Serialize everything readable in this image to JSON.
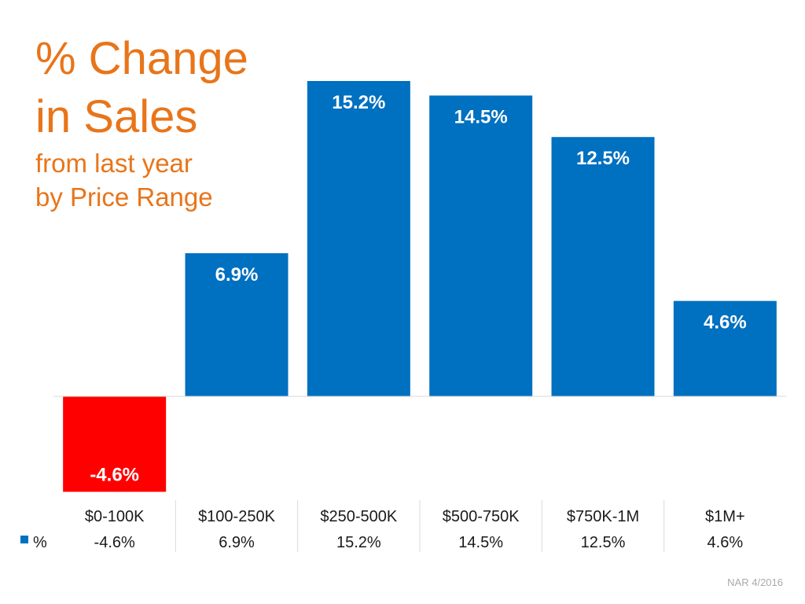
{
  "title": {
    "line1": "% Change",
    "line2": "in Sales",
    "sub1": "from last year",
    "sub2": "by Price Range"
  },
  "chart_data": {
    "type": "bar",
    "categories": [
      "$0-100K",
      "$100-250K",
      "$250-500K",
      "$500-750K",
      "$750K-1M",
      "$1M+"
    ],
    "series": [
      {
        "name": "%",
        "values": [
          -4.6,
          6.9,
          15.2,
          14.5,
          12.5,
          4.6
        ],
        "labels": [
          "-4.6%",
          "6.9%",
          "15.2%",
          "14.5%",
          "12.5%",
          "4.6%"
        ],
        "table_values": [
          "-4.6%",
          "6.9%",
          "15.2%",
          "14.5%",
          "12.5%",
          "4.6%"
        ]
      }
    ],
    "ylim": [
      -4.6,
      15.2
    ],
    "grid": false,
    "legend": "data-table",
    "colors": {
      "positive": "#0070c0",
      "negative": "#ff0000"
    }
  },
  "source": "NAR 4/2016"
}
